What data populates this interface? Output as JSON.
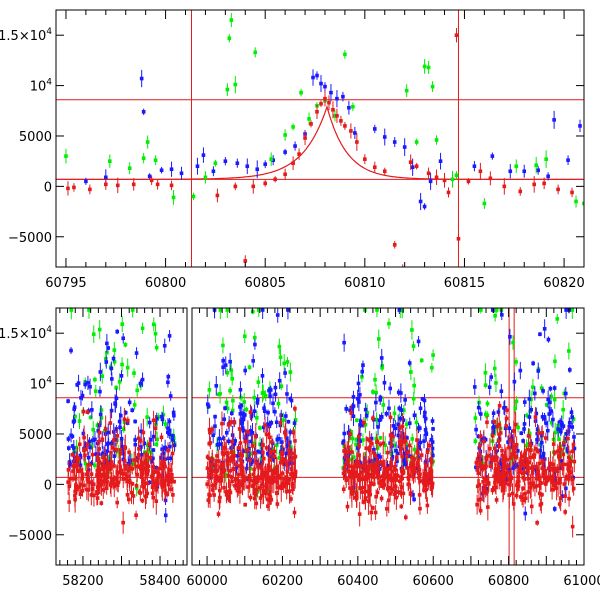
{
  "chart_data": [
    {
      "type": "scatter",
      "title": "",
      "xlabel": "",
      "ylabel": "",
      "xlim": [
        60794.5,
        60821
      ],
      "ylim": [
        -8000,
        17500
      ],
      "x_ticks": [
        {
          "value": 60795,
          "label": "60795"
        },
        {
          "value": 60800,
          "label": "60800"
        },
        {
          "value": 60805,
          "label": "60805"
        },
        {
          "value": 60810,
          "label": "60810"
        },
        {
          "value": 60815,
          "label": "60815"
        },
        {
          "value": 60820,
          "label": "60820"
        }
      ],
      "y_ticks": [
        {
          "value": -5000,
          "label": "−5000",
          "sup": ""
        },
        {
          "value": 0,
          "label": "0",
          "sup": ""
        },
        {
          "value": 5000,
          "label": "5000",
          "sup": ""
        },
        {
          "value": 10000,
          "label": "10",
          "sup": "4"
        },
        {
          "value": 15000,
          "label": "1.5×10",
          "sup": "4"
        }
      ],
      "reference_lines": {
        "horizontal": [
          8600,
          700
        ],
        "vertical": [
          60801.3,
          60814.7
        ],
        "color": "#e41a1c"
      },
      "model_curve": {
        "color": "#e41a1c",
        "t0": 60808.1,
        "peak": 7900,
        "baseline": 700,
        "rise_tau": 1.2,
        "decay_tau": 1.0
      },
      "series": [
        {
          "name": "blue",
          "color": "#1a1aff",
          "points": [
            [
              60796.0,
              500
            ],
            [
              60797.0,
              900
            ],
            [
              60798.8,
              10700
            ],
            [
              60798.9,
              7400
            ],
            [
              60799.2,
              1000
            ],
            [
              60799.8,
              1600
            ],
            [
              60800.3,
              1700
            ],
            [
              60800.8,
              1300
            ],
            [
              60801.6,
              2000
            ],
            [
              60801.9,
              3100
            ],
            [
              60802.4,
              1500
            ],
            [
              60803.0,
              2500
            ],
            [
              60803.6,
              2300
            ],
            [
              60804.1,
              2000
            ],
            [
              60804.6,
              1700
            ],
            [
              60805.0,
              2200
            ],
            [
              60805.4,
              2600
            ],
            [
              60806.0,
              3400
            ],
            [
              60806.5,
              4000
            ],
            [
              60807.0,
              5200
            ],
            [
              60807.4,
              10800
            ],
            [
              60807.6,
              11000
            ],
            [
              60807.8,
              10200
            ],
            [
              60808.0,
              9900
            ],
            [
              60808.3,
              9300
            ],
            [
              60808.6,
              8700
            ],
            [
              60808.9,
              8900
            ],
            [
              60809.2,
              7800
            ],
            [
              60809.5,
              5300
            ],
            [
              60810.5,
              5700
            ],
            [
              60811.0,
              4900
            ],
            [
              60811.5,
              4400
            ],
            [
              60812.0,
              3900
            ],
            [
              60812.4,
              1900
            ],
            [
              60812.8,
              -1500
            ],
            [
              60813.0,
              -2000
            ],
            [
              60813.3,
              500
            ],
            [
              60813.8,
              2500
            ],
            [
              60815.5,
              2000
            ],
            [
              60816.4,
              3000
            ],
            [
              60817.3,
              1500
            ],
            [
              60818.0,
              1500
            ],
            [
              60818.7,
              1600
            ],
            [
              60819.2,
              1000
            ],
            [
              60819.5,
              6600
            ],
            [
              60820.2,
              2600
            ],
            [
              60820.8,
              6000
            ]
          ]
        },
        {
          "name": "green",
          "color": "#00ee00",
          "points": [
            [
              60795.0,
              3000
            ],
            [
              60797.2,
              2500
            ],
            [
              60798.2,
              1800
            ],
            [
              60798.9,
              2800
            ],
            [
              60799.1,
              4400
            ],
            [
              60799.5,
              2600
            ],
            [
              60800.4,
              -1100
            ],
            [
              60801.4,
              -1000
            ],
            [
              60802.0,
              900
            ],
            [
              60802.5,
              2300
            ],
            [
              60803.1,
              9600
            ],
            [
              60803.2,
              14700
            ],
            [
              60803.3,
              16500
            ],
            [
              60803.5,
              10100
            ],
            [
              60804.5,
              13300
            ],
            [
              60805.3,
              2700
            ],
            [
              60806.0,
              5100
            ],
            [
              60806.4,
              5900
            ],
            [
              60806.8,
              9300
            ],
            [
              60807.2,
              6700
            ],
            [
              60807.6,
              8000
            ],
            [
              60808.0,
              8500
            ],
            [
              60808.5,
              7000
            ],
            [
              60809.0,
              13100
            ],
            [
              60809.4,
              7900
            ],
            [
              60812.1,
              9500
            ],
            [
              60812.6,
              4400
            ],
            [
              60813.0,
              11900
            ],
            [
              60813.2,
              11800
            ],
            [
              60813.4,
              9900
            ],
            [
              60813.6,
              4600
            ],
            [
              60814.4,
              700
            ],
            [
              60814.6,
              1100
            ],
            [
              60816.0,
              -1700
            ],
            [
              60817.6,
              2000
            ],
            [
              60818.6,
              2100
            ],
            [
              60819.1,
              2700
            ],
            [
              60820.6,
              -1500
            ],
            [
              60821.0,
              -1700
            ]
          ]
        },
        {
          "name": "red",
          "color": "#e41a1c",
          "points": [
            [
              60795.1,
              -200
            ],
            [
              60795.4,
              -100
            ],
            [
              60796.2,
              -300
            ],
            [
              60797.0,
              200
            ],
            [
              60797.6,
              100
            ],
            [
              60798.4,
              200
            ],
            [
              60799.3,
              600
            ],
            [
              60799.6,
              200
            ],
            [
              60800.3,
              100
            ],
            [
              60802.6,
              -900
            ],
            [
              60803.5,
              0
            ],
            [
              60804.0,
              -7400
            ],
            [
              60804.4,
              0
            ],
            [
              60805.0,
              300
            ],
            [
              60805.5,
              700
            ],
            [
              60806.0,
              1200
            ],
            [
              60806.4,
              2300
            ],
            [
              60806.7,
              3200
            ],
            [
              60807.0,
              4800
            ],
            [
              60807.3,
              6200
            ],
            [
              60807.6,
              7400
            ],
            [
              60807.8,
              8200
            ],
            [
              60808.0,
              8700
            ],
            [
              60808.2,
              8300
            ],
            [
              60808.4,
              7600
            ],
            [
              60808.6,
              7000
            ],
            [
              60808.8,
              6500
            ],
            [
              60809.0,
              6000
            ],
            [
              60809.3,
              5500
            ],
            [
              60809.6,
              4400
            ],
            [
              60810.0,
              2700
            ],
            [
              60810.5,
              1900
            ],
            [
              60811.0,
              1500
            ],
            [
              60811.5,
              -5800
            ],
            [
              60811.9,
              -8200
            ],
            [
              60812.3,
              2400
            ],
            [
              60812.6,
              2000
            ],
            [
              60813.2,
              1300
            ],
            [
              60813.6,
              900
            ],
            [
              60814.0,
              600
            ],
            [
              60814.2,
              -600
            ],
            [
              60814.6,
              15000
            ],
            [
              60814.7,
              -5200
            ],
            [
              60815.2,
              500
            ],
            [
              60815.8,
              1500
            ],
            [
              60816.3,
              800
            ],
            [
              60817.0,
              0
            ],
            [
              60817.8,
              -500
            ],
            [
              60818.5,
              200
            ],
            [
              60819.0,
              300
            ],
            [
              60819.7,
              -300
            ],
            [
              60820.4,
              -600
            ]
          ]
        }
      ]
    },
    {
      "type": "scatter",
      "title": "",
      "xlabel": "",
      "ylabel": "",
      "ylim": [
        -8000,
        17500
      ],
      "x_segments": [
        {
          "xlim": [
            58130,
            58470
          ],
          "ticks": [
            {
              "value": 58200,
              "label": "58200"
            },
            {
              "value": 58400,
              "label": "58400"
            }
          ]
        },
        {
          "xlim": [
            59960,
            61000
          ],
          "ticks": [
            {
              "value": 60000,
              "label": "60000"
            },
            {
              "value": 60200,
              "label": "60200"
            },
            {
              "value": 60400,
              "label": "60400"
            },
            {
              "value": 60600,
              "label": "60600"
            },
            {
              "value": 60800,
              "label": "60800"
            },
            {
              "value": 61000,
              "label": "61000"
            }
          ]
        }
      ],
      "y_ticks": [
        {
          "value": -5000,
          "label": "−5000",
          "sup": ""
        },
        {
          "value": 0,
          "label": "0",
          "sup": ""
        },
        {
          "value": 5000,
          "label": "5000",
          "sup": ""
        },
        {
          "value": 10000,
          "label": "10",
          "sup": "4"
        },
        {
          "value": 15000,
          "label": "1.5×10",
          "sup": "4"
        }
      ],
      "reference_lines": {
        "horizontal": [
          8600,
          700
        ],
        "vertical": [
          60801.3,
          60814.7
        ],
        "color": "#e41a1c"
      },
      "observing_seasons": [
        {
          "segment": 0,
          "start": 58160,
          "end": 58440
        },
        {
          "segment": 1,
          "start": 60000,
          "end": 60235
        },
        {
          "segment": 1,
          "start": 60360,
          "end": 60600
        },
        {
          "segment": 1,
          "start": 60710,
          "end": 60975
        }
      ],
      "series": [
        {
          "name": "blue",
          "color": "#1a1aff",
          "spread": [
            4000,
            5500
          ],
          "count_per_season": 150
        },
        {
          "name": "green",
          "color": "#00ee00",
          "spread": [
            6000,
            4000
          ],
          "count_per_season": 70
        },
        {
          "name": "red",
          "color": "#e41a1c",
          "spread": [
            2200,
            2600
          ],
          "count_per_season": 260
        }
      ]
    }
  ]
}
